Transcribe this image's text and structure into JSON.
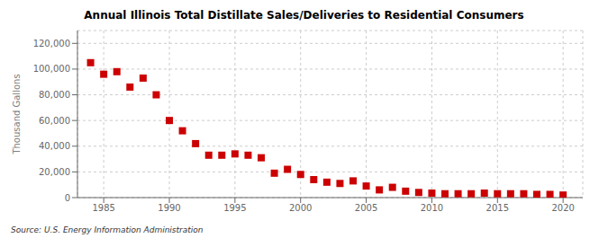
{
  "chart_data": {
    "type": "scatter",
    "title": "Annual Illinois Total Distillate Sales/Deliveries to Residential Consumers",
    "ylabel": "Thousand Gallons",
    "annotations": [
      "Source: U.S. Energy Information Administration"
    ],
    "color": "#cc0000",
    "marker": "square",
    "grid": true,
    "xlim": [
      1983,
      2021.5
    ],
    "ylim": [
      0,
      130000
    ],
    "xticks": [
      1985,
      1990,
      1995,
      2000,
      2005,
      2010,
      2015,
      2020
    ],
    "yticks": [
      0,
      {
        "value": 20000,
        "label": "20,000"
      },
      {
        "value": 40000,
        "label": "40,000"
      },
      {
        "value": 60000,
        "label": "60,000"
      },
      {
        "value": 80000,
        "label": "80,000"
      },
      {
        "value": 100000,
        "label": "100,000"
      },
      {
        "value": 120000,
        "label": "120,000"
      }
    ],
    "x": [
      1984,
      1985,
      1986,
      1987,
      1988,
      1989,
      1990,
      1991,
      1992,
      1993,
      1994,
      1995,
      1996,
      1997,
      1998,
      1999,
      2000,
      2001,
      2002,
      2003,
      2004,
      2005,
      2006,
      2007,
      2008,
      2009,
      2010,
      2011,
      2012,
      2013,
      2014,
      2015,
      2016,
      2017,
      2018,
      2019,
      2020
    ],
    "values": [
      105000,
      96000,
      98000,
      86000,
      93000,
      80000,
      60000,
      52000,
      42000,
      33000,
      33000,
      34000,
      33000,
      31000,
      19000,
      22000,
      18000,
      14000,
      12000,
      11000,
      13000,
      9000,
      6000,
      8000,
      5000,
      4000,
      3500,
      3000,
      3000,
      3000,
      3500,
      3000,
      3000,
      3000,
      2500,
      2500,
      2000
    ]
  }
}
